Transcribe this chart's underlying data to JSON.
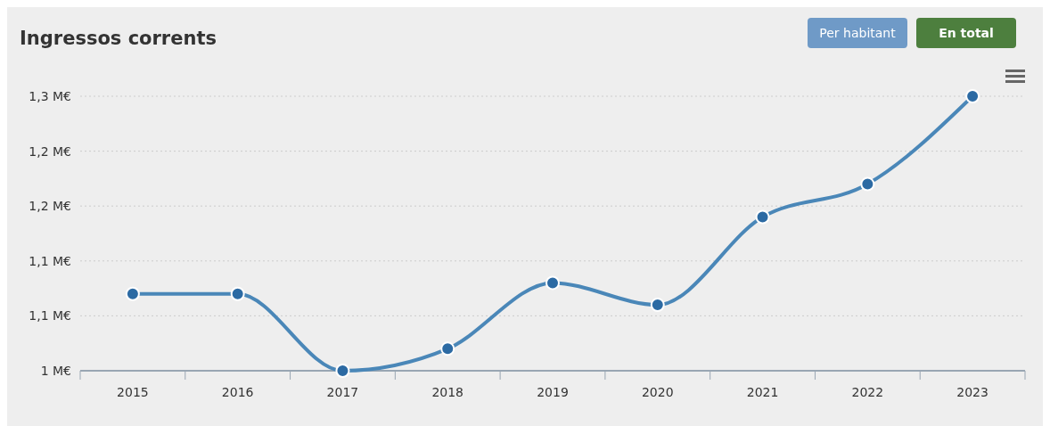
{
  "chart_data": {
    "type": "line",
    "title": "Ingressos corrents",
    "categories": [
      "2015",
      "2016",
      "2017",
      "2018",
      "2019",
      "2020",
      "2021",
      "2022",
      "2023"
    ],
    "series": [
      {
        "color": "#4a87b8",
        "values": [
          1.07,
          1.07,
          1.0,
          1.02,
          1.08,
          1.06,
          1.14,
          1.17,
          1.25
        ]
      }
    ],
    "ylim": [
      1.0,
      1.25
    ],
    "yticks": [
      {
        "value": 1.0,
        "label": "1 M€"
      },
      {
        "value": 1.05,
        "label": "1,1 M€"
      },
      {
        "value": 1.1,
        "label": "1,1 M€"
      },
      {
        "value": 1.15,
        "label": "1,2 M€"
      },
      {
        "value": 1.2,
        "label": "1,2 M€"
      },
      {
        "value": 1.25,
        "label": "1,3 M€"
      }
    ],
    "grid": "y",
    "marker": "circle",
    "line_style": "solid",
    "annotations": [
      "Per habitant",
      "En total"
    ]
  }
}
